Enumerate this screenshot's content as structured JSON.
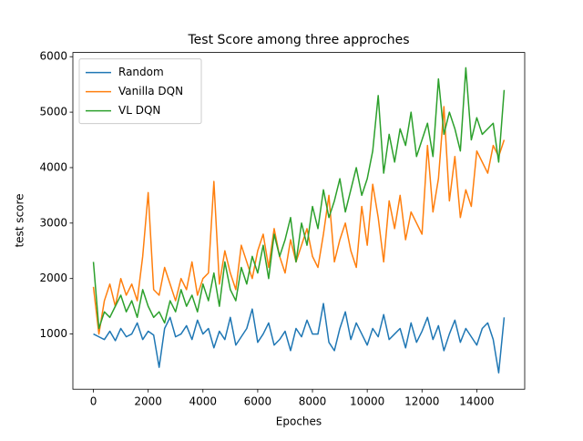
{
  "chart_data": {
    "type": "line",
    "title": "Test Score among three approches",
    "x_label": "Epoches",
    "y_label": "test score",
    "x": [
      0,
      200,
      400,
      600,
      800,
      1000,
      1200,
      1400,
      1600,
      1800,
      2000,
      2200,
      2400,
      2600,
      2800,
      3000,
      3200,
      3400,
      3600,
      3800,
      4000,
      4200,
      4400,
      4600,
      4800,
      5000,
      5200,
      5400,
      5600,
      5800,
      6000,
      6200,
      6400,
      6600,
      6800,
      7000,
      7200,
      7400,
      7600,
      7800,
      8000,
      8200,
      8400,
      8600,
      8800,
      9000,
      9200,
      9400,
      9600,
      9800,
      10000,
      10200,
      10400,
      10600,
      10800,
      11000,
      11200,
      11400,
      11600,
      11800,
      12000,
      12200,
      12400,
      12600,
      12800,
      13000,
      13200,
      13400,
      13600,
      13800,
      14000,
      14200,
      14400,
      14600,
      14800,
      15000
    ],
    "series": [
      {
        "name": "Random",
        "color": "#1f77b4",
        "values": [
          1000,
          950,
          900,
          1050,
          880,
          1100,
          950,
          1000,
          1200,
          900,
          1050,
          980,
          400,
          1100,
          1300,
          950,
          1000,
          1150,
          900,
          1250,
          1000,
          1100,
          750,
          1050,
          900,
          1300,
          800,
          950,
          1100,
          1450,
          850,
          1000,
          1200,
          800,
          900,
          1050,
          700,
          1100,
          950,
          1250,
          1000,
          1000,
          1550,
          850,
          700,
          1100,
          1400,
          900,
          1200,
          1000,
          800,
          1100,
          950,
          1350,
          900,
          1000,
          1100,
          750,
          1200,
          850,
          1050,
          1300,
          900,
          1150,
          700,
          1000,
          1250,
          850,
          1100,
          950,
          800,
          1100,
          1200,
          900,
          300,
          1300
        ]
      },
      {
        "name": "Vanilla DQN",
        "color": "#ff7f0e",
        "values": [
          1850,
          1000,
          1600,
          1900,
          1500,
          2000,
          1700,
          1900,
          1600,
          2400,
          3550,
          1800,
          1700,
          2200,
          1900,
          1600,
          2000,
          1800,
          2300,
          1700,
          2000,
          2100,
          3750,
          1900,
          2500,
          2100,
          1800,
          2600,
          2300,
          2000,
          2500,
          2800,
          2200,
          2900,
          2400,
          2100,
          2700,
          2300,
          2600,
          2900,
          2400,
          2200,
          2800,
          3500,
          2300,
          2700,
          3000,
          2500,
          2200,
          3300,
          2600,
          3700,
          3100,
          2300,
          3400,
          2900,
          3500,
          2700,
          3200,
          3000,
          2800,
          4400,
          3200,
          3800,
          5100,
          3400,
          4200,
          3100,
          3600,
          3300,
          4300,
          4100,
          3900,
          4400,
          4200,
          4500
        ]
      },
      {
        "name": "VL DQN",
        "color": "#2ca02c",
        "values": [
          2300,
          1100,
          1400,
          1300,
          1500,
          1700,
          1400,
          1600,
          1300,
          1800,
          1500,
          1300,
          1400,
          1200,
          1600,
          1400,
          1800,
          1500,
          1700,
          1400,
          1900,
          1600,
          2100,
          1500,
          2300,
          1800,
          1600,
          2200,
          1900,
          2400,
          2100,
          2600,
          2000,
          2800,
          2400,
          2700,
          3100,
          2300,
          3000,
          2600,
          3300,
          2900,
          3600,
          3100,
          3400,
          3800,
          3200,
          3600,
          4000,
          3500,
          3800,
          4300,
          5300,
          3900,
          4600,
          4100,
          4700,
          4400,
          5000,
          4200,
          4500,
          4800,
          4200,
          5600,
          4600,
          5000,
          4700,
          4300,
          5800,
          4500,
          4900,
          4600,
          4700,
          4800,
          4100,
          5400
        ]
      }
    ],
    "xlim": [
      -750,
      15750
    ],
    "ylim": [
      4,
      6076
    ],
    "xticks": [
      0,
      2000,
      4000,
      6000,
      8000,
      10000,
      12000,
      14000
    ],
    "yticks": [
      1000,
      2000,
      3000,
      4000,
      5000,
      6000
    ],
    "legend": "upper left",
    "grid": false
  }
}
